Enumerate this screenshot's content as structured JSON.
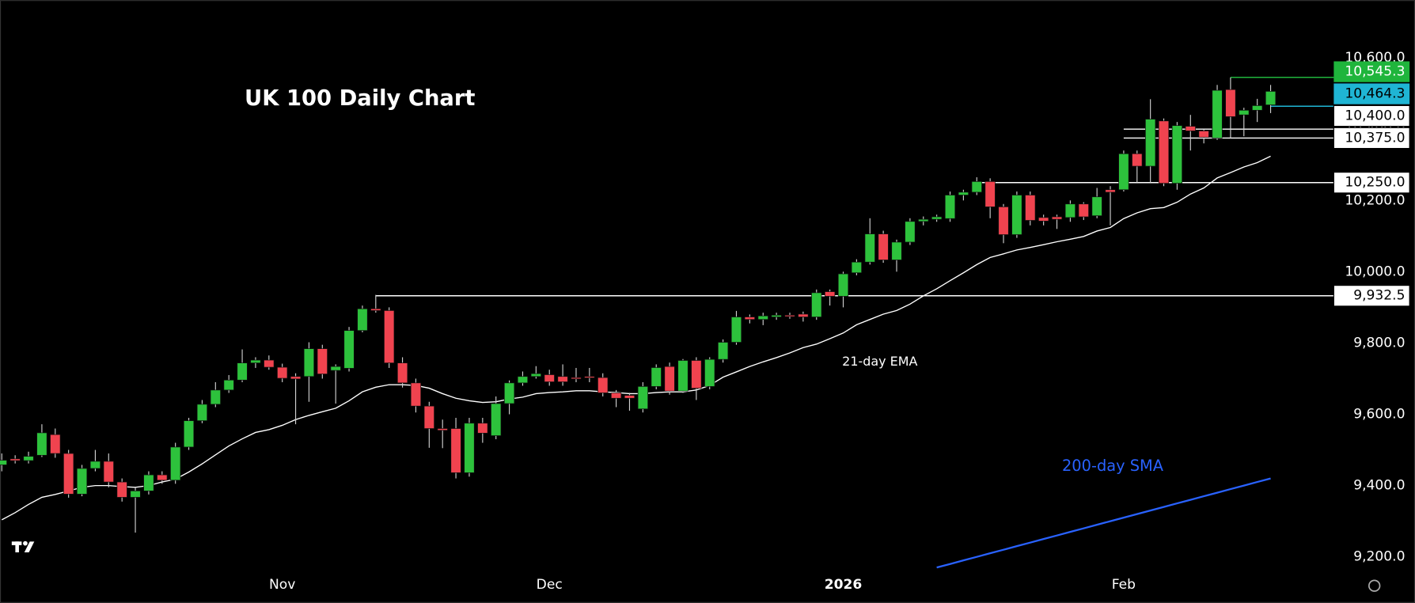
{
  "chart_data": {
    "type": "candlestick",
    "title": "UK 100 Daily Chart",
    "categories": [
      null,
      null,
      null,
      null,
      null,
      null,
      null,
      null,
      null,
      null,
      null,
      null,
      null,
      null,
      null,
      null,
      null,
      null,
      null,
      null,
      null,
      "Nov",
      null,
      null,
      null,
      null,
      null,
      null,
      null,
      null,
      null,
      null,
      null,
      null,
      null,
      null,
      null,
      null,
      null,
      null,
      null,
      "Dec",
      null,
      null,
      null,
      null,
      null,
      null,
      null,
      null,
      null,
      null,
      null,
      null,
      null,
      null,
      null,
      null,
      null,
      null,
      null,
      null,
      null,
      "2026",
      null,
      null,
      null,
      null,
      null,
      null,
      null,
      null,
      null,
      null,
      null,
      null,
      null,
      null,
      null,
      null,
      null,
      null,
      null,
      null,
      "Feb",
      null,
      null,
      null,
      null,
      null,
      null,
      null,
      null,
      null,
      null,
      null
    ],
    "open": [
      9458,
      9475,
      9470,
      9485,
      9543,
      9490,
      9376,
      9448,
      9468,
      9410,
      9367,
      9385,
      9430,
      9415,
      9508,
      9582,
      9628,
      9668,
      9696,
      9744,
      9752,
      9732,
      9706,
      9706,
      9784,
      9723,
      9729,
      9835,
      9896,
      9891,
      9744,
      9688,
      9623,
      9560,
      9560,
      9436,
      9575,
      9540,
      9630,
      9688,
      9706,
      9711,
      9706,
      9703,
      9706,
      9703,
      9660,
      9653,
      9615,
      9678,
      9734,
      9665,
      9751,
      9678,
      9754,
      9802,
      9873,
      9866,
      9873,
      9878,
      9881,
      9873,
      9944,
      9931,
      9997,
      10027,
      10106,
      10033,
      10083,
      10141,
      10147,
      10149,
      10215,
      10223,
      10253,
      10182,
      10104,
      10215,
      10152,
      10154,
      10152,
      10190,
      10157,
      10230,
      10230,
      10331,
      10296,
      10423,
      10248,
      10408,
      10395,
      10375,
      10511,
      10440,
      10453,
      10468
    ],
    "high": [
      9490,
      9485,
      9495,
      9572,
      9560,
      9500,
      9458,
      9500,
      9490,
      9420,
      9395,
      9440,
      9440,
      9520,
      9590,
      9640,
      9690,
      9710,
      9782,
      9760,
      9765,
      9742,
      9715,
      9802,
      9795,
      9740,
      9845,
      9905,
      9935,
      9900,
      9760,
      9700,
      9635,
      9585,
      9590,
      9590,
      9590,
      9650,
      9695,
      9720,
      9735,
      9725,
      9740,
      9730,
      9730,
      9715,
      9668,
      9660,
      9690,
      9740,
      9745,
      9755,
      9760,
      9760,
      9810,
      9890,
      9880,
      9885,
      9885,
      9885,
      9888,
      9950,
      9950,
      10000,
      10035,
      10150,
      10115,
      10090,
      10150,
      10155,
      10160,
      10225,
      10230,
      10265,
      10262,
      10190,
      10225,
      10225,
      10160,
      10160,
      10200,
      10195,
      10235,
      10240,
      10340,
      10340,
      10484,
      10430,
      10420,
      10440,
      10400,
      10524,
      10545,
      10460,
      10485,
      10524
    ],
    "low": [
      9440,
      9462,
      9462,
      9480,
      9478,
      9366,
      9370,
      9440,
      9395,
      9355,
      9268,
      9375,
      9405,
      9405,
      9500,
      9575,
      9620,
      9660,
      9690,
      9730,
      9725,
      9690,
      9572,
      9635,
      9700,
      9630,
      9720,
      9830,
      9885,
      9730,
      9675,
      9605,
      9506,
      9505,
      9420,
      9425,
      9520,
      9530,
      9600,
      9680,
      9700,
      9680,
      9680,
      9690,
      9690,
      9650,
      9620,
      9610,
      9605,
      9670,
      9655,
      9660,
      9640,
      9670,
      9745,
      9795,
      9855,
      9850,
      9865,
      9868,
      9860,
      9865,
      9905,
      9900,
      9990,
      10020,
      10025,
      10000,
      10075,
      10130,
      10140,
      10140,
      10200,
      10215,
      10150,
      10080,
      10095,
      10130,
      10130,
      10120,
      10140,
      10145,
      10150,
      10130,
      10225,
      10250,
      10250,
      10240,
      10230,
      10340,
      10360,
      10370,
      10375,
      10380,
      10420,
      10445
    ],
    "close": [
      9471,
      9470,
      9482,
      9548,
      9490,
      9376,
      9448,
      9468,
      9410,
      9367,
      9385,
      9430,
      9415,
      9508,
      9582,
      9628,
      9668,
      9696,
      9744,
      9752,
      9732,
      9701,
      9699,
      9784,
      9713,
      9734,
      9835,
      9896,
      9891,
      9744,
      9688,
      9623,
      9560,
      9555,
      9436,
      9575,
      9547,
      9630,
      9688,
      9706,
      9714,
      9691,
      9691,
      9700,
      9703,
      9660,
      9645,
      9645,
      9678,
      9731,
      9665,
      9751,
      9673,
      9754,
      9802,
      9873,
      9866,
      9876,
      9878,
      9876,
      9873,
      9941,
      9931,
      9994,
      10027,
      10106,
      10033,
      10083,
      10141,
      10147,
      10154,
      10215,
      10223,
      10253,
      10182,
      10104,
      10215,
      10144,
      10142,
      10147,
      10190,
      10154,
      10210,
      10223,
      10331,
      10296,
      10428,
      10248,
      10410,
      10395,
      10377,
      10509,
      10435,
      10453,
      10466,
      10506
    ],
    "up_color": "#2dc23c",
    "down_color": "#f0434f",
    "series": [
      {
        "name": "21-day EMA",
        "color": "#ffffff",
        "values": [
          9304,
          9324,
          9347,
          9367,
          9375,
          9385,
          9395,
          9400,
          9400,
          9397,
          9395,
          9400,
          9410,
          9418,
          9438,
          9461,
          9486,
          9511,
          9531,
          9549,
          9557,
          9569,
          9585,
          9597,
          9607,
          9617,
          9638,
          9663,
          9676,
          9683,
          9683,
          9681,
          9673,
          9658,
          9645,
          9638,
          9633,
          9635,
          9643,
          9648,
          9658,
          9661,
          9663,
          9666,
          9666,
          9663,
          9661,
          9658,
          9658,
          9661,
          9663,
          9663,
          9668,
          9681,
          9704,
          9719,
          9734,
          9747,
          9759,
          9772,
          9787,
          9797,
          9812,
          9828,
          9851,
          9866,
          9881,
          9891,
          9909,
          9932,
          9952,
          9975,
          9997,
          10020,
          10040,
          10050,
          10061,
          10068,
          10076,
          10084,
          10091,
          10099,
          10114,
          10124,
          10149,
          10165,
          10177,
          10180,
          10195,
          10218,
          10235,
          10263,
          10278,
          10294,
          10306,
          10324
        ]
      },
      {
        "name": "200-day SMA",
        "color": "#2962ff",
        "values": [
          null,
          null,
          null,
          null,
          null,
          null,
          null,
          null,
          null,
          null,
          null,
          null,
          null,
          null,
          null,
          null,
          null,
          null,
          null,
          null,
          null,
          null,
          null,
          null,
          null,
          null,
          null,
          null,
          null,
          null,
          null,
          null,
          null,
          null,
          null,
          null,
          null,
          null,
          null,
          null,
          null,
          null,
          null,
          null,
          null,
          null,
          null,
          null,
          null,
          null,
          null,
          null,
          null,
          null,
          null,
          null,
          null,
          null,
          null,
          null,
          null,
          null,
          null,
          null,
          null,
          null,
          null,
          null,
          null,
          null,
          9170,
          9180,
          9190,
          9200,
          9210,
          9220,
          9230,
          9240,
          9250,
          9260,
          9270,
          9280,
          9290,
          9300,
          9310,
          9320,
          9330,
          9340,
          9350,
          9360,
          9370,
          9380,
          9390,
          9400,
          9410,
          9420
        ]
      }
    ],
    "levels": [
      {
        "value": 10545.3,
        "label": "10,545.3",
        "color": "#1fb53c"
      },
      {
        "value": 10464.3,
        "label": "10,464.3",
        "color": "#1fb5d4"
      },
      {
        "value": 10400,
        "label": "10,400.0",
        "color": "#ffffff"
      },
      {
        "value": 10375,
        "label": "10,375.0",
        "color": "#ffffff"
      },
      {
        "value": 10250,
        "label": "10,250.0",
        "color": "#ffffff"
      },
      {
        "value": 9932.5,
        "label": "9,932.5",
        "color": "#ffffff"
      }
    ],
    "ylim": [
      9167,
      10762
    ],
    "yticks": [
      {
        "value": 9200,
        "label": "9,200.0"
      },
      {
        "value": 9400,
        "label": "9,400.0"
      },
      {
        "value": 9600,
        "label": "9,600.0"
      },
      {
        "value": 9800,
        "label": "9,800.0"
      },
      {
        "value": 10000,
        "label": "10,000.0"
      },
      {
        "value": 10200,
        "label": "10,200.0"
      },
      {
        "value": 10400,
        "label": "10,400.0"
      },
      {
        "value": 10600,
        "label": "10,600.0"
      }
    ]
  }
}
